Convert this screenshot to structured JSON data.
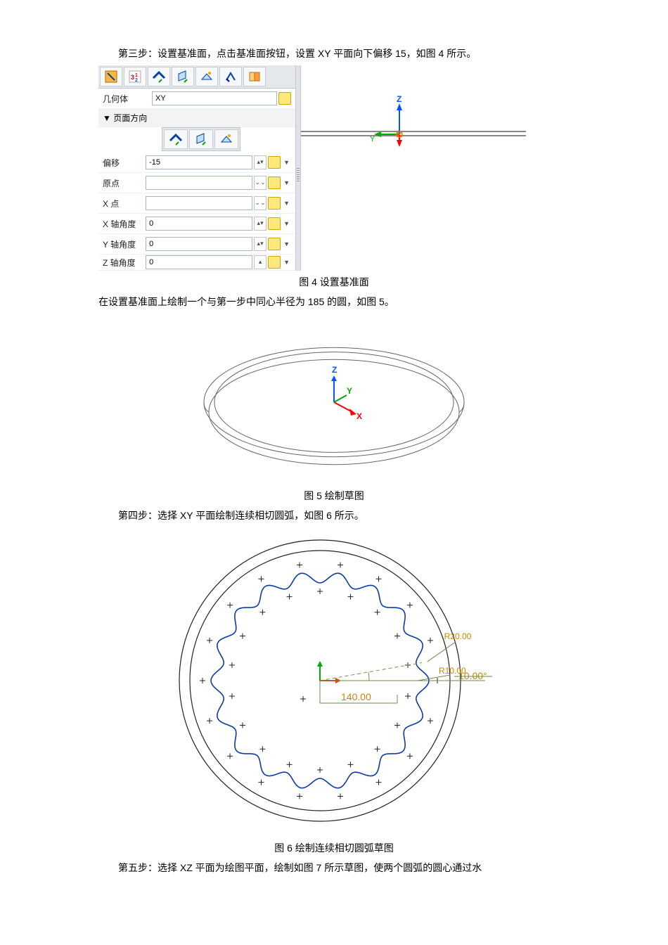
{
  "step3": {
    "text": "第三步：设置基准面，点击基准面按钮，设置 XY 平面向下偏移 15，如图 4 所示。"
  },
  "panel": {
    "geometry_label": "几何体",
    "geometry_value": "XY",
    "section_label": "▼ 页面方向",
    "offset_label": "偏移",
    "offset_value": "-15",
    "origin_label": "原点",
    "origin_value": "",
    "xpt_label": "X 点",
    "xpt_value": "",
    "xang_label": "X 轴角度",
    "xang_value": "0",
    "yang_label": "Y 轴角度",
    "yang_value": "0",
    "zang_label": "Z 轴角度",
    "zang_value": "0"
  },
  "axis_labels": {
    "z": "Z",
    "y": "Y",
    "x": "X"
  },
  "caption4": "图 4  设置基准面",
  "after4": "在设置基准面上绘制一个与第一步中同心半径为 185 的圆，如图 5。",
  "fig5": {
    "outer_r": 185,
    "inner_r": 170,
    "lower_r": 178,
    "colors": {
      "stroke": "#666666",
      "z": "#0055ff",
      "y": "#00aa00",
      "x": "#ff0000"
    }
  },
  "caption5": "图 5  绘制草图",
  "step4": "第四步：选择 XY 平面绘制连续相切圆弧，如图 6 所示。",
  "fig6": {
    "outer_r1": 200,
    "outer_r2": 185,
    "wavy_mean_r": 147,
    "wavy_amp": 8,
    "wavy_n": 18,
    "dim_r": "140.00",
    "dim_ang": "10.00°",
    "dim_r20": "R20.00",
    "dim_r10": "R10.00",
    "colors": {
      "stroke": "#222222",
      "blue": "#0b3aa6",
      "dim_text": "#c98600",
      "dim_line": "#6f8a4a",
      "axis_y": "#00aa00",
      "axis_x": "#ff3300",
      "axis_z": "#0055ff"
    }
  },
  "caption6": "图 6  绘制连续相切圆弧草图",
  "step5": "第五步：选择 XZ 平面为绘图平面，绘制如图 7 所示草图，使两个圆弧的圆心通过水"
}
